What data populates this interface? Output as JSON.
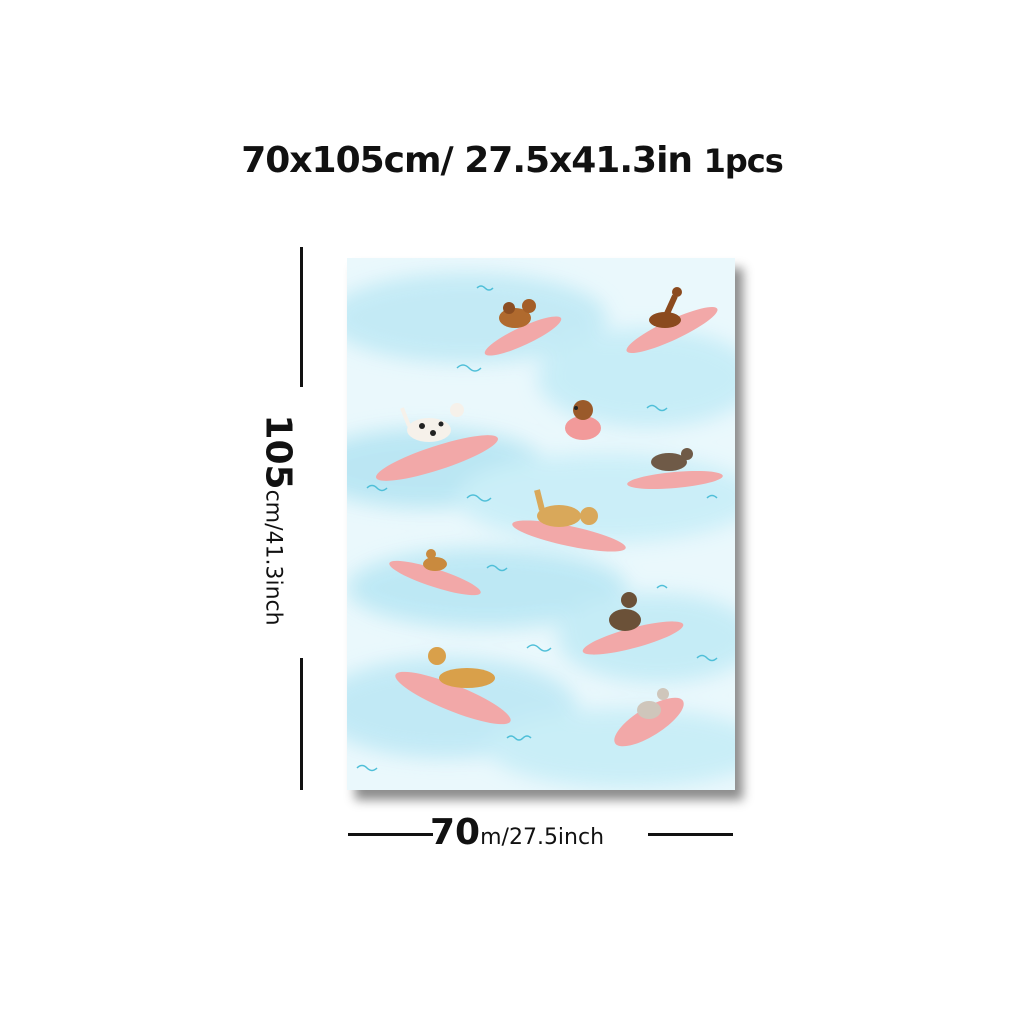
{
  "heading": {
    "size_cm": "70x105cm/",
    "size_in": "27.5x41.3in",
    "quantity": "1pcs"
  },
  "dimension_height": {
    "number": "105",
    "unit_text": "cm/41.3inch"
  },
  "dimension_width": {
    "number": "70",
    "unit_text": "m/27.5inch"
  },
  "artwork": {
    "subject": "watercolor-surfing-dogs",
    "background_color": "#cdeef7",
    "board_color": "#f2a8a8"
  }
}
